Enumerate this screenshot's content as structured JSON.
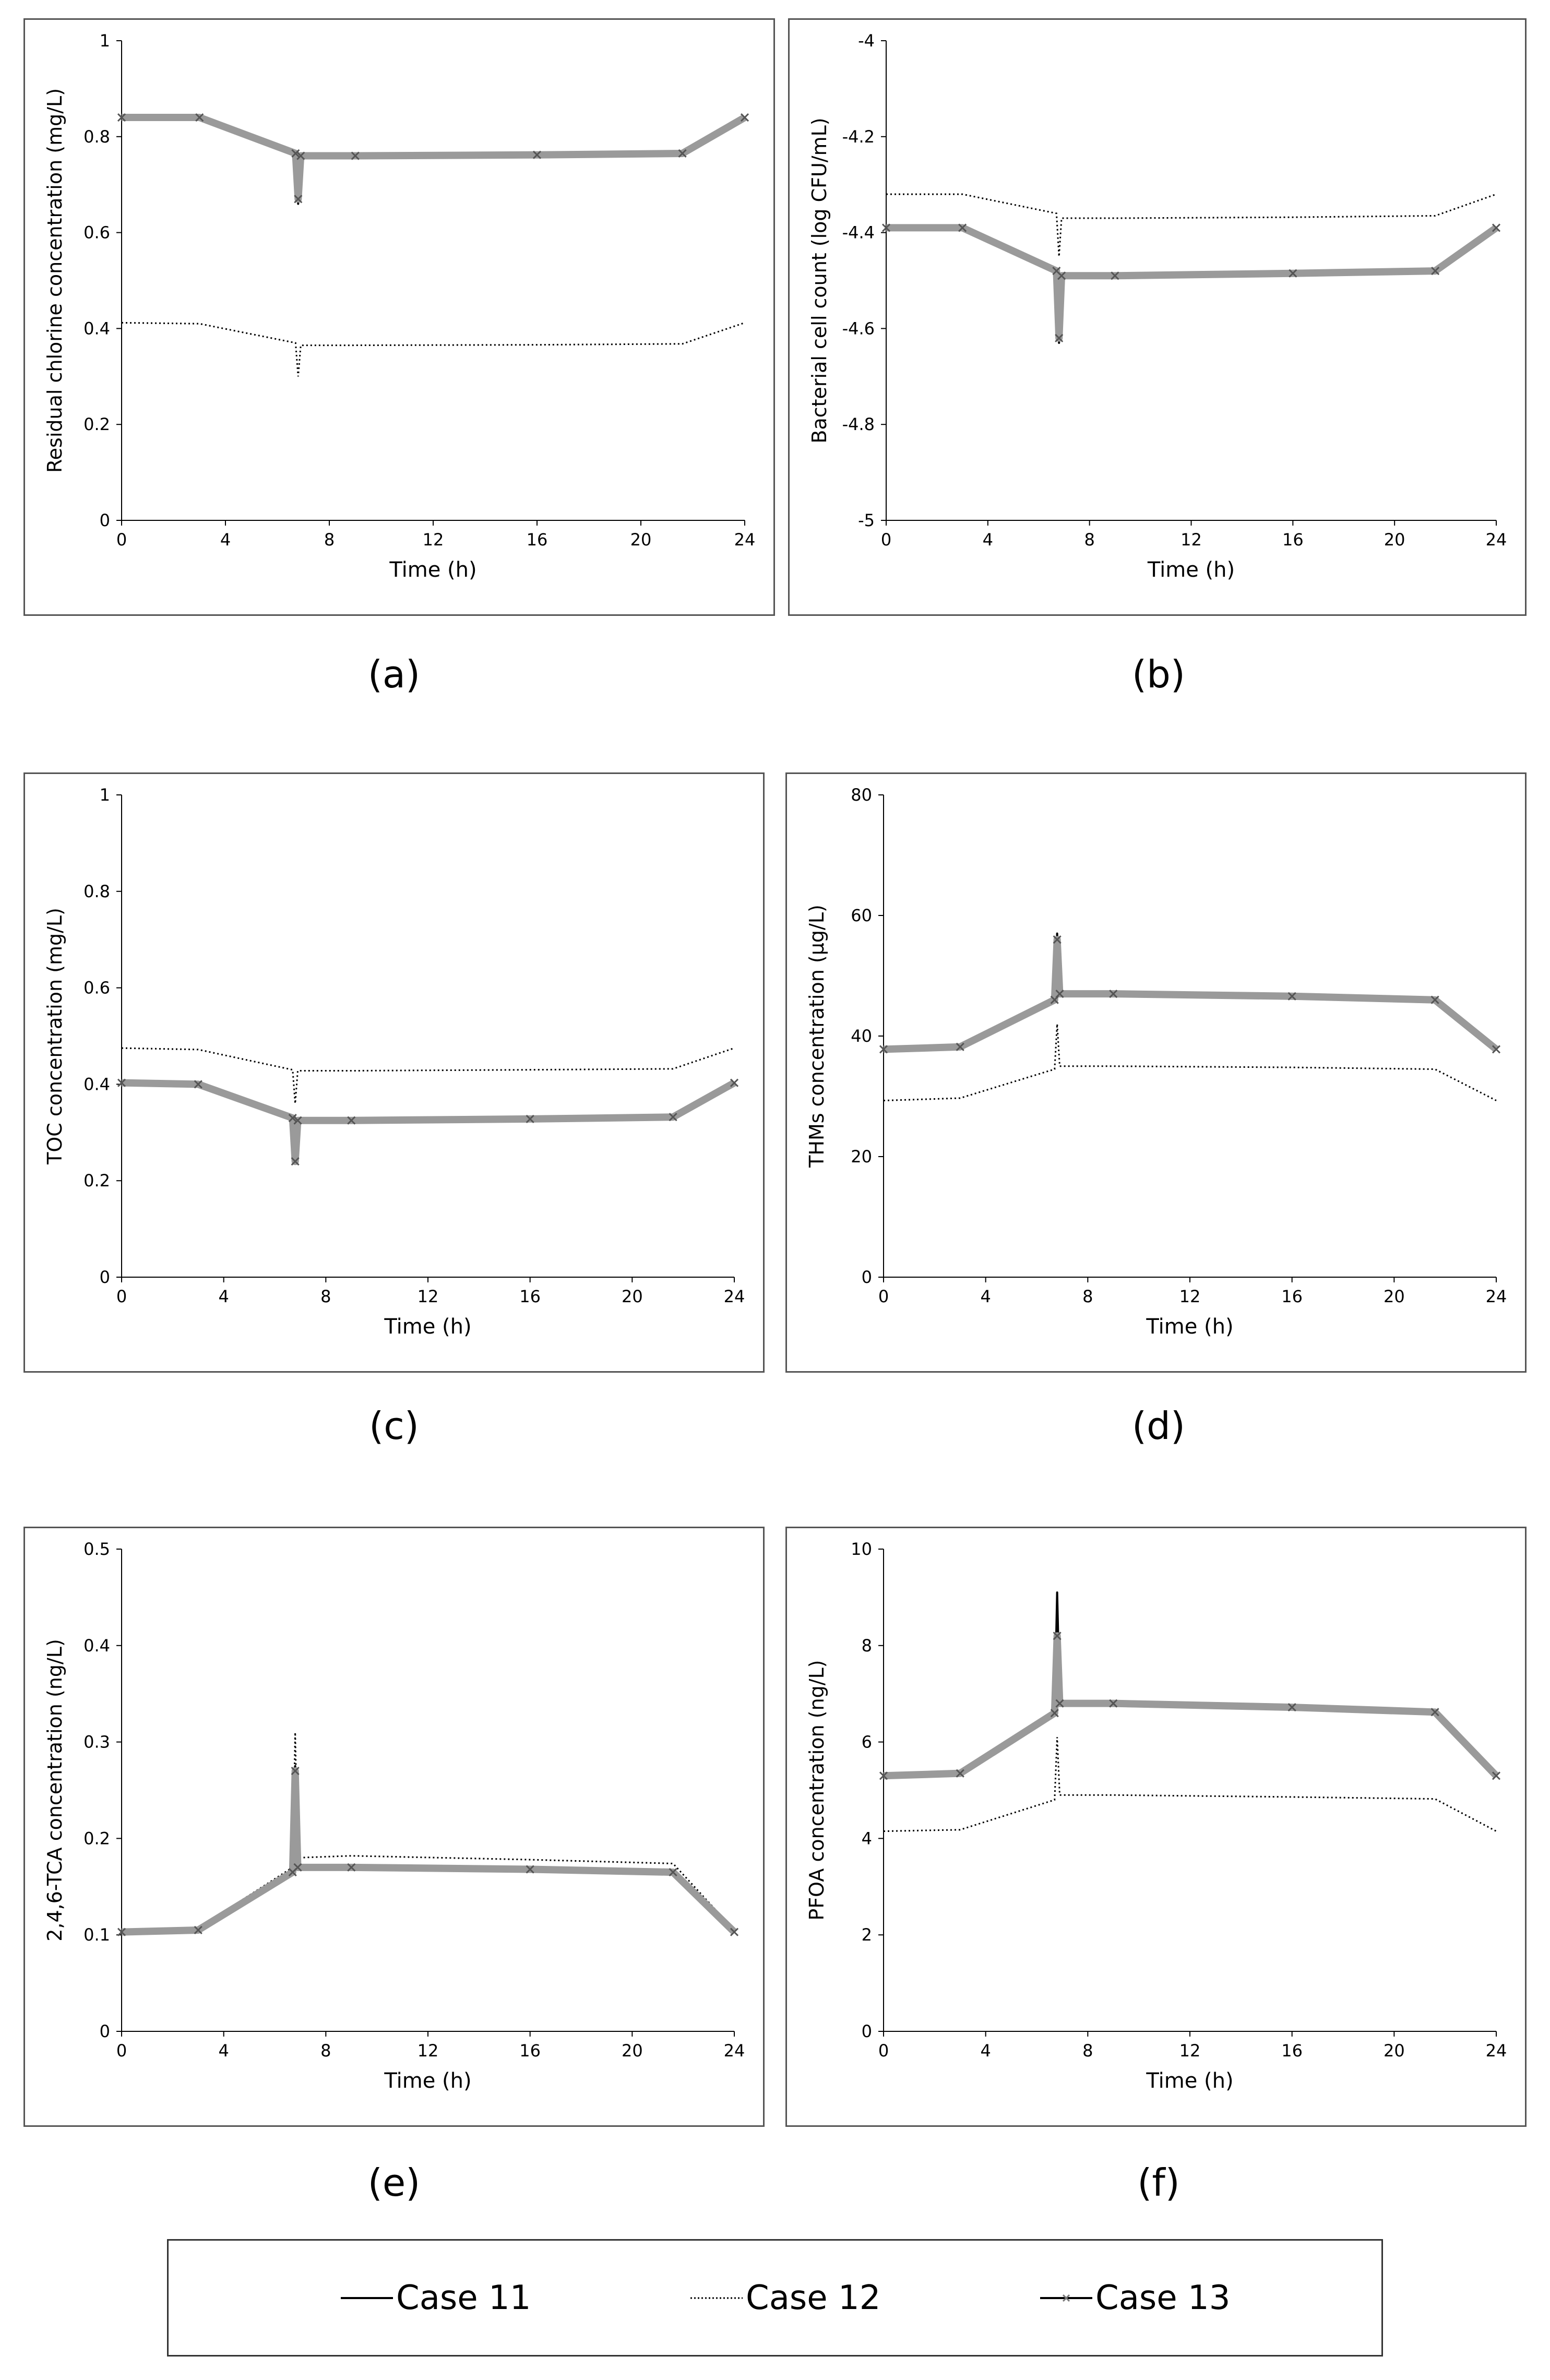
{
  "figure": {
    "legend": [
      {
        "name": "Case 11",
        "style": "solid"
      },
      {
        "name": "Case 12",
        "style": "dotted"
      },
      {
        "name": "Case 13",
        "style": "solid-x"
      }
    ]
  },
  "chart_data": [
    {
      "id": "a",
      "caption": "(a)",
      "type": "line",
      "xlabel": "Time (h)",
      "ylabel": "Residual chlorine concentration (mg/L)",
      "xlim": [
        0,
        24
      ],
      "ylim": [
        0,
        1
      ],
      "xticks": [
        "0",
        "4",
        "8",
        "12",
        "16",
        "20",
        "24"
      ],
      "yticks": [
        "0",
        "0.2",
        "0.4",
        "0.6",
        "0.8",
        "1"
      ],
      "ytick_values": [
        0,
        0.2,
        0.4,
        0.6,
        0.8,
        1
      ],
      "series": [
        {
          "name": "Case 11",
          "x": [
            0,
            3,
            6.7,
            6.8,
            6.9,
            9,
            16,
            21.6,
            24
          ],
          "y": [
            0.84,
            0.84,
            0.765,
            0.66,
            0.76,
            0.76,
            0.762,
            0.765,
            0.84
          ]
        },
        {
          "name": "Case 12",
          "x": [
            0,
            3,
            6.7,
            6.8,
            6.9,
            9,
            16,
            21.6,
            24
          ],
          "y": [
            0.412,
            0.41,
            0.37,
            0.3,
            0.365,
            0.365,
            0.366,
            0.368,
            0.412
          ]
        },
        {
          "name": "Case 13",
          "x": [
            0,
            3,
            6.7,
            6.8,
            6.9,
            9,
            16,
            21.6,
            24
          ],
          "y": [
            0.84,
            0.84,
            0.765,
            0.67,
            0.76,
            0.76,
            0.762,
            0.765,
            0.84
          ]
        }
      ]
    },
    {
      "id": "b",
      "caption": "(b)",
      "type": "line",
      "xlabel": "Time (h)",
      "ylabel": "Bacterial cell count (log CFU/mL)",
      "xlim": [
        0,
        24
      ],
      "ylim": [
        -5,
        -4
      ],
      "xticks": [
        "0",
        "4",
        "8",
        "12",
        "16",
        "20",
        "24"
      ],
      "yticks": [
        "-5",
        "-4.8",
        "-4.6",
        "-4.4",
        "-4.2",
        "-4"
      ],
      "ytick_values": [
        -5,
        -4.8,
        -4.6,
        -4.4,
        -4.2,
        -4
      ],
      "series": [
        {
          "name": "Case 11",
          "x": [
            0,
            3,
            6.7,
            6.8,
            6.9,
            9,
            16,
            21.6,
            24
          ],
          "y": [
            -4.39,
            -4.39,
            -4.48,
            -4.63,
            -4.49,
            -4.49,
            -4.485,
            -4.48,
            -4.39
          ]
        },
        {
          "name": "Case 12",
          "x": [
            0,
            3,
            6.7,
            6.8,
            6.9,
            9,
            16,
            21.6,
            24
          ],
          "y": [
            -4.32,
            -4.32,
            -4.36,
            -4.45,
            -4.37,
            -4.37,
            -4.368,
            -4.365,
            -4.32
          ]
        },
        {
          "name": "Case 13",
          "x": [
            0,
            3,
            6.7,
            6.8,
            6.9,
            9,
            16,
            21.6,
            24
          ],
          "y": [
            -4.39,
            -4.39,
            -4.48,
            -4.62,
            -4.49,
            -4.49,
            -4.485,
            -4.48,
            -4.39
          ]
        }
      ]
    },
    {
      "id": "c",
      "caption": "(c)",
      "type": "line",
      "xlabel": "Time (h)",
      "ylabel": "TOC concentration (mg/L)",
      "xlim": [
        0,
        24
      ],
      "ylim": [
        0,
        1
      ],
      "xticks": [
        "0",
        "4",
        "8",
        "12",
        "16",
        "20",
        "24"
      ],
      "yticks": [
        "0",
        "0.2",
        "0.4",
        "0.6",
        "0.8",
        "1"
      ],
      "ytick_values": [
        0,
        0.2,
        0.4,
        0.6,
        0.8,
        1
      ],
      "series": [
        {
          "name": "Case 11",
          "x": [
            0,
            3,
            6.7,
            6.8,
            6.9,
            9,
            16,
            21.6,
            24
          ],
          "y": [
            0.403,
            0.4,
            0.33,
            0.235,
            0.325,
            0.325,
            0.328,
            0.332,
            0.403
          ]
        },
        {
          "name": "Case 12",
          "x": [
            0,
            3,
            6.7,
            6.8,
            6.9,
            9,
            16,
            21.6,
            24
          ],
          "y": [
            0.475,
            0.472,
            0.43,
            0.36,
            0.428,
            0.428,
            0.43,
            0.432,
            0.475
          ]
        },
        {
          "name": "Case 13",
          "x": [
            0,
            3,
            6.7,
            6.8,
            6.9,
            9,
            16,
            21.6,
            24
          ],
          "y": [
            0.403,
            0.4,
            0.33,
            0.24,
            0.325,
            0.325,
            0.328,
            0.332,
            0.403
          ]
        }
      ]
    },
    {
      "id": "d",
      "caption": "(d)",
      "type": "line",
      "xlabel": "Time (h)",
      "ylabel": "THMs concentration (μg/L)",
      "xlim": [
        0,
        24
      ],
      "ylim": [
        0,
        80
      ],
      "xticks": [
        "0",
        "4",
        "8",
        "12",
        "16",
        "20",
        "24"
      ],
      "yticks": [
        "0",
        "20",
        "40",
        "60",
        "80"
      ],
      "ytick_values": [
        0,
        20,
        40,
        60,
        80
      ],
      "series": [
        {
          "name": "Case 11",
          "x": [
            0,
            3,
            6.7,
            6.8,
            6.9,
            9,
            16,
            21.6,
            24
          ],
          "y": [
            37.8,
            38.2,
            46,
            57,
            47,
            47,
            46.6,
            46,
            37.8
          ]
        },
        {
          "name": "Case 12",
          "x": [
            0,
            3,
            6.7,
            6.8,
            6.9,
            9,
            16,
            21.6,
            24
          ],
          "y": [
            29.3,
            29.7,
            34.5,
            42,
            35,
            35,
            34.8,
            34.5,
            29.3
          ]
        },
        {
          "name": "Case 13",
          "x": [
            0,
            3,
            6.7,
            6.8,
            6.9,
            9,
            16,
            21.6,
            24
          ],
          "y": [
            37.8,
            38.2,
            46,
            56,
            47,
            47,
            46.6,
            46,
            37.8
          ]
        }
      ]
    },
    {
      "id": "e",
      "caption": "(e)",
      "type": "line",
      "xlabel": "Time (h)",
      "ylabel": "2,4,6-TCA concentration (ng/L)",
      "xlim": [
        0,
        24
      ],
      "ylim": [
        0,
        0.5
      ],
      "xticks": [
        "0",
        "4",
        "8",
        "12",
        "16",
        "20",
        "24"
      ],
      "yticks": [
        "0",
        "0.1",
        "0.2",
        "0.3",
        "0.4",
        "0.5"
      ],
      "ytick_values": [
        0,
        0.1,
        0.2,
        0.3,
        0.4,
        0.5
      ],
      "series": [
        {
          "name": "Case 11",
          "x": [
            0,
            3,
            6.7,
            6.8,
            6.9,
            9,
            16,
            21.6,
            24
          ],
          "y": [
            0.103,
            0.105,
            0.165,
            0.275,
            0.17,
            0.17,
            0.168,
            0.165,
            0.103
          ]
        },
        {
          "name": "Case 12",
          "x": [
            0,
            3,
            6.7,
            6.8,
            6.9,
            9,
            16,
            21.6,
            24
          ],
          "y": [
            0.105,
            0.107,
            0.17,
            0.31,
            0.18,
            0.182,
            0.178,
            0.174,
            0.105
          ]
        },
        {
          "name": "Case 13",
          "x": [
            0,
            3,
            6.7,
            6.8,
            6.9,
            9,
            16,
            21.6,
            24
          ],
          "y": [
            0.103,
            0.105,
            0.165,
            0.27,
            0.17,
            0.17,
            0.168,
            0.165,
            0.103
          ]
        }
      ]
    },
    {
      "id": "f",
      "caption": "(f)",
      "type": "line",
      "xlabel": "Time (h)",
      "ylabel": "PFOA concentration (ng/L)",
      "xlim": [
        0,
        24
      ],
      "ylim": [
        0,
        10
      ],
      "xticks": [
        "0",
        "4",
        "8",
        "12",
        "16",
        "20",
        "24"
      ],
      "yticks": [
        "0",
        "2",
        "4",
        "6",
        "8",
        "10"
      ],
      "ytick_values": [
        0,
        2,
        4,
        6,
        8,
        10
      ],
      "series": [
        {
          "name": "Case 11",
          "x": [
            0,
            3,
            6.7,
            6.8,
            6.9,
            9,
            16,
            21.6,
            24
          ],
          "y": [
            5.3,
            5.35,
            6.6,
            9.1,
            6.8,
            6.8,
            6.72,
            6.62,
            5.3
          ]
        },
        {
          "name": "Case 12",
          "x": [
            0,
            3,
            6.7,
            6.8,
            6.9,
            9,
            16,
            21.6,
            24
          ],
          "y": [
            4.15,
            4.18,
            4.8,
            6.1,
            4.9,
            4.9,
            4.86,
            4.82,
            4.15
          ]
        },
        {
          "name": "Case 13",
          "x": [
            0,
            3,
            6.7,
            6.8,
            6.9,
            9,
            16,
            21.6,
            24
          ],
          "y": [
            5.3,
            5.35,
            6.6,
            8.2,
            6.8,
            6.8,
            6.72,
            6.62,
            5.3
          ]
        }
      ]
    }
  ]
}
